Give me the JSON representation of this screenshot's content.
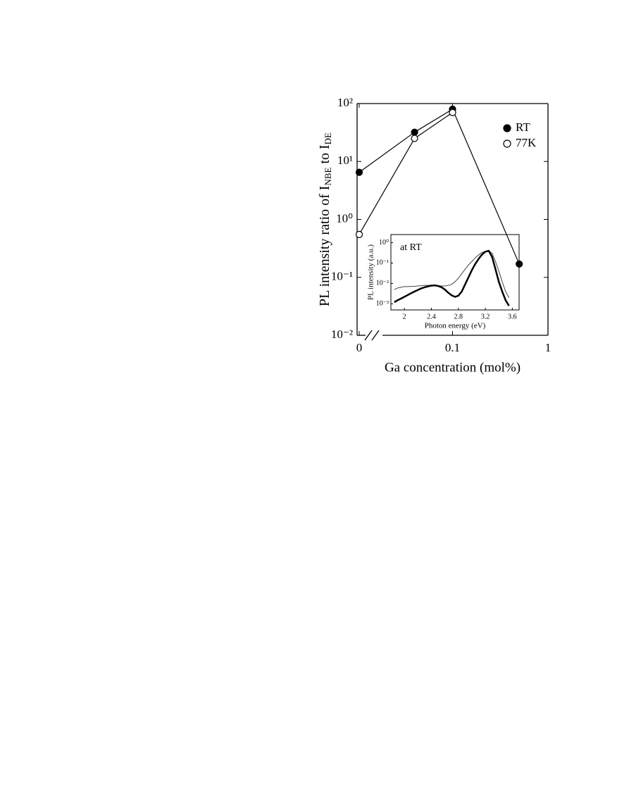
{
  "chart_data": [
    {
      "type": "line",
      "xlabel": "Ga concentration (mol%)",
      "ylabel": [
        {
          "text": "PL intensity ratio of I",
          "sub": false
        },
        {
          "text": "NBE",
          "sub": true
        },
        {
          "text": " to I",
          "sub": false
        },
        {
          "text": "DE",
          "sub": true
        }
      ],
      "x": [
        0,
        0.04,
        0.1,
        0.5
      ],
      "series": [
        {
          "name": "RT",
          "color": "#000000",
          "marker": "filled",
          "values": [
            6.5,
            32,
            80,
            0.17
          ]
        },
        {
          "name": "77K",
          "color": "#000000",
          "marker": "open",
          "values": [
            0.55,
            25,
            70,
            null
          ]
        }
      ],
      "xscale": "log",
      "yscale": "log",
      "axis_break": true,
      "xlim": [
        0.01,
        1
      ],
      "xticks": [
        0,
        0.1,
        1
      ],
      "ylim": [
        0.01,
        100
      ],
      "yticks": [
        {
          "value": 100,
          "label": "10²"
        },
        {
          "value": 10,
          "label": "10¹"
        },
        {
          "value": 1,
          "label": "10⁰"
        },
        {
          "value": 0.1,
          "label": "10⁻¹"
        },
        {
          "value": 0.01,
          "label": "10⁻²"
        }
      ],
      "legend": "upper right"
    },
    {
      "type": "line",
      "annotation": "at RT",
      "xlabel": "Photon energy (eV)",
      "ylabel": "PL intensity (a.u.)",
      "x": [
        1.85,
        1.9,
        1.95,
        2.0,
        2.05,
        2.1,
        2.15,
        2.2,
        2.25,
        2.3,
        2.35,
        2.4,
        2.45,
        2.5,
        2.55,
        2.6,
        2.65,
        2.7,
        2.75,
        2.8,
        2.85,
        2.9,
        2.95,
        3.0,
        3.05,
        3.1,
        3.15,
        3.2,
        3.25,
        3.3,
        3.35,
        3.4,
        3.45,
        3.5,
        3.55
      ],
      "series": [
        {
          "color": "#444444",
          "width": 1,
          "values": [
            0.005,
            0.006,
            0.0065,
            0.007,
            0.007,
            0.0072,
            0.0073,
            0.0075,
            0.0078,
            0.008,
            0.008,
            0.0082,
            0.008,
            0.0078,
            0.0075,
            0.0075,
            0.008,
            0.009,
            0.012,
            0.018,
            0.03,
            0.05,
            0.08,
            0.12,
            0.18,
            0.25,
            0.33,
            0.38,
            0.4,
            0.3,
            0.12,
            0.04,
            0.012,
            0.004,
            0.002
          ]
        },
        {
          "color": "#000000",
          "width": 2.5,
          "values": [
            0.0012,
            0.0015,
            0.0018,
            0.0022,
            0.0027,
            0.0033,
            0.004,
            0.0048,
            0.0057,
            0.0065,
            0.0072,
            0.0078,
            0.008,
            0.0075,
            0.0065,
            0.005,
            0.0035,
            0.0026,
            0.0022,
            0.0025,
            0.004,
            0.009,
            0.02,
            0.045,
            0.09,
            0.16,
            0.26,
            0.36,
            0.4,
            0.2,
            0.05,
            0.012,
            0.004,
            0.0015,
            0.0008
          ]
        }
      ],
      "yscale": "log",
      "xlim": [
        1.8,
        3.7
      ],
      "xticks": [
        2,
        2.4,
        2.8,
        3.2,
        3.6
      ],
      "ylim": [
        0.0005,
        2.5
      ],
      "yticks": [
        {
          "value": 1,
          "label": "10⁰"
        },
        {
          "value": 0.1,
          "label": "10⁻¹"
        },
        {
          "value": 0.01,
          "label": "10⁻²"
        },
        {
          "value": 0.001,
          "label": "10⁻³"
        }
      ]
    }
  ]
}
